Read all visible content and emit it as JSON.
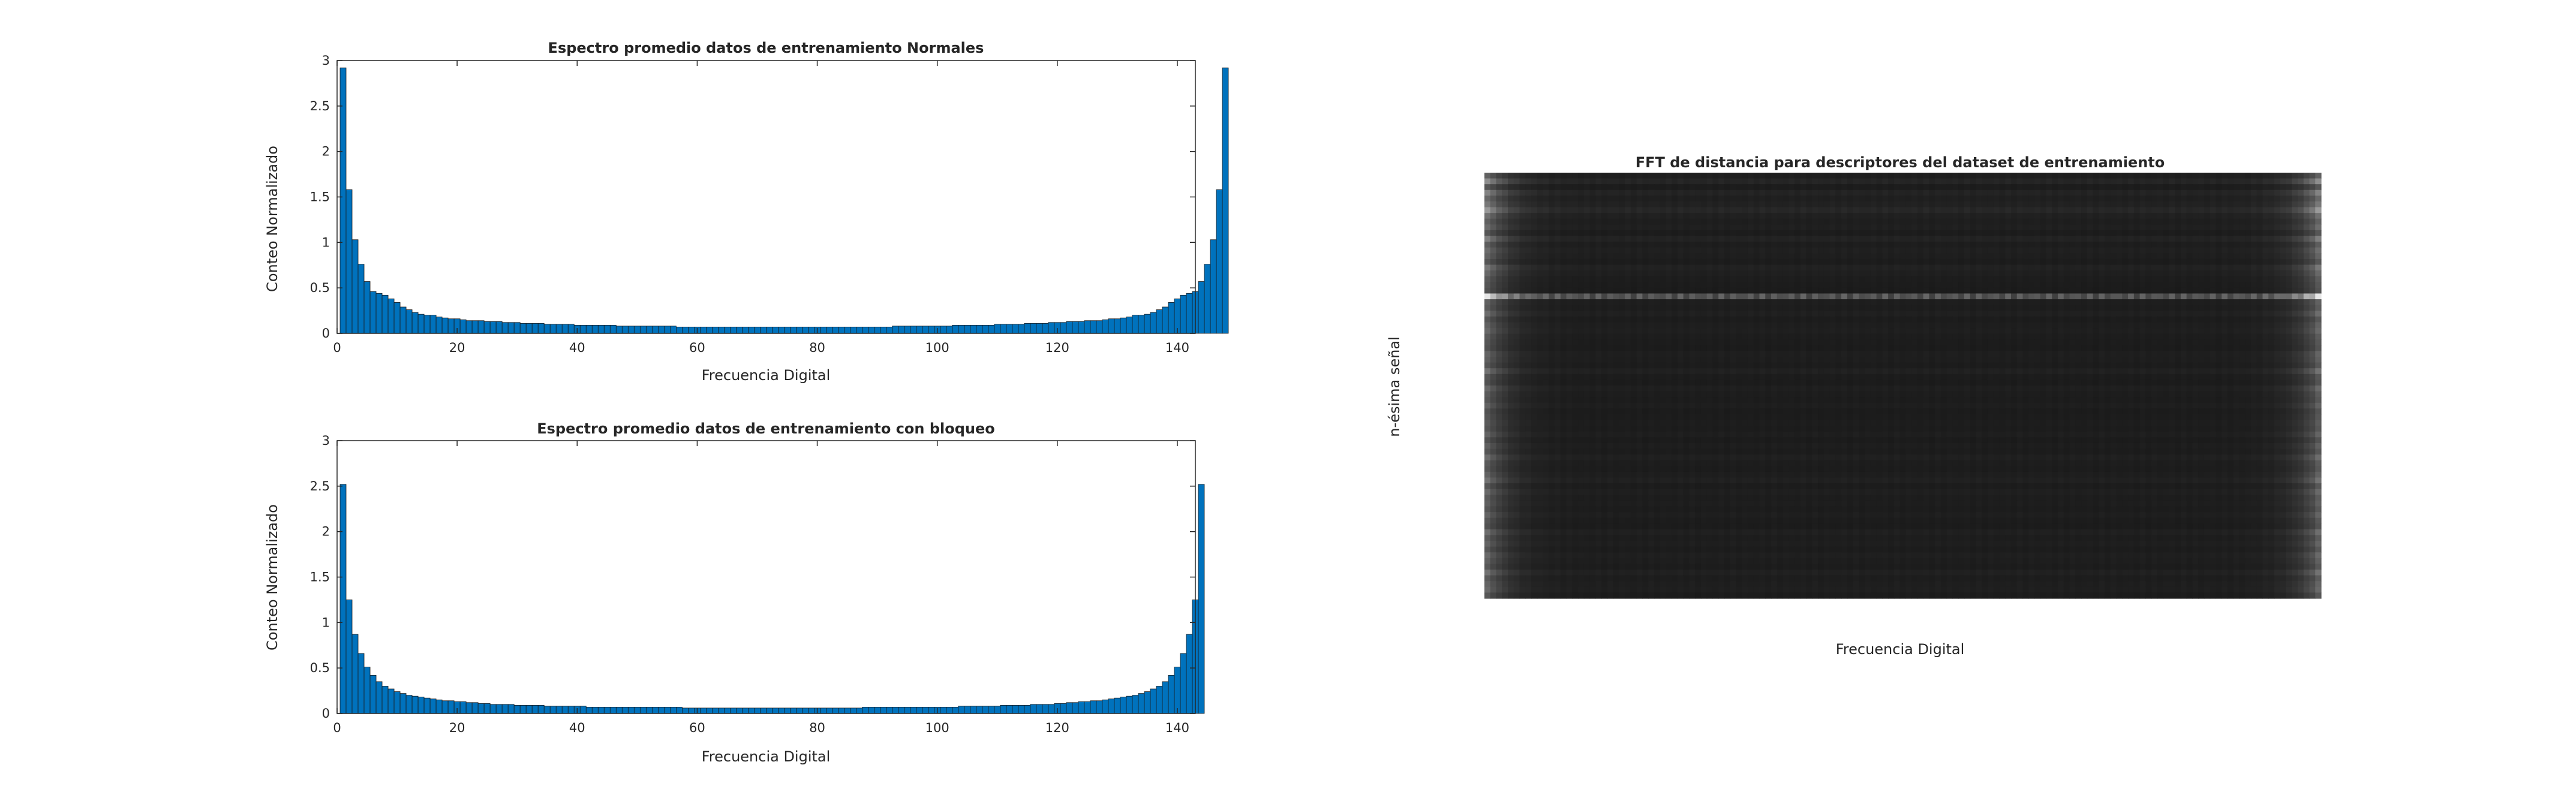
{
  "chart_data": [
    {
      "type": "bar",
      "title": "Espectro promedio datos de entrenamiento Normales",
      "xlabel": "Frecuencia Digital",
      "ylabel": "Conteo Normalizado",
      "xlim": [
        0,
        143
      ],
      "ylim": [
        0,
        3
      ],
      "xticks": [
        0,
        20,
        40,
        60,
        80,
        100,
        120,
        140
      ],
      "yticks": [
        0,
        0.5,
        1,
        1.5,
        2,
        2.5,
        3
      ],
      "bar_color": "#0072BD",
      "x_start": 1,
      "x_step": 1,
      "values": [
        2.92,
        1.58,
        1.03,
        0.76,
        0.57,
        0.46,
        0.44,
        0.42,
        0.38,
        0.34,
        0.29,
        0.26,
        0.23,
        0.21,
        0.2,
        0.2,
        0.18,
        0.17,
        0.16,
        0.16,
        0.15,
        0.14,
        0.14,
        0.14,
        0.13,
        0.13,
        0.13,
        0.12,
        0.12,
        0.12,
        0.11,
        0.11,
        0.11,
        0.11,
        0.1,
        0.1,
        0.1,
        0.1,
        0.1,
        0.09,
        0.09,
        0.09,
        0.09,
        0.09,
        0.09,
        0.09,
        0.08,
        0.08,
        0.08,
        0.08,
        0.08,
        0.08,
        0.08,
        0.08,
        0.08,
        0.08,
        0.07,
        0.07,
        0.07,
        0.07,
        0.07,
        0.07,
        0.07,
        0.07,
        0.07,
        0.07,
        0.07,
        0.07,
        0.07,
        0.07,
        0.07,
        0.07,
        0.07,
        0.07,
        0.07,
        0.07,
        0.07,
        0.07,
        0.07,
        0.07,
        0.07,
        0.07,
        0.07,
        0.07,
        0.07,
        0.07,
        0.07,
        0.07,
        0.07,
        0.07,
        0.07,
        0.07,
        0.08,
        0.08,
        0.08,
        0.08,
        0.08,
        0.08,
        0.08,
        0.08,
        0.08,
        0.08,
        0.09,
        0.09,
        0.09,
        0.09,
        0.09,
        0.09,
        0.09,
        0.1,
        0.1,
        0.1,
        0.1,
        0.1,
        0.11,
        0.11,
        0.11,
        0.11,
        0.12,
        0.12,
        0.12,
        0.13,
        0.13,
        0.13,
        0.14,
        0.14,
        0.14,
        0.15,
        0.16,
        0.16,
        0.17,
        0.18,
        0.2,
        0.2,
        0.21,
        0.23,
        0.26,
        0.29,
        0.34,
        0.38,
        0.42,
        0.44,
        0.46,
        0.57,
        0.76,
        1.03,
        1.58,
        2.92
      ]
    },
    {
      "type": "bar",
      "title": "Espectro promedio datos de entrenamiento con bloqueo",
      "xlabel": "Frecuencia Digital",
      "ylabel": "Conteo Normalizado",
      "xlim": [
        0,
        143
      ],
      "ylim": [
        0,
        3
      ],
      "xticks": [
        0,
        20,
        40,
        60,
        80,
        100,
        120,
        140
      ],
      "yticks": [
        0,
        0.5,
        1,
        1.5,
        2,
        2.5,
        3
      ],
      "bar_color": "#0072BD",
      "x_start": 1,
      "x_step": 1,
      "values": [
        2.52,
        1.25,
        0.87,
        0.66,
        0.51,
        0.42,
        0.35,
        0.3,
        0.27,
        0.24,
        0.22,
        0.2,
        0.19,
        0.18,
        0.17,
        0.16,
        0.15,
        0.14,
        0.14,
        0.13,
        0.13,
        0.12,
        0.12,
        0.11,
        0.11,
        0.1,
        0.1,
        0.1,
        0.1,
        0.09,
        0.09,
        0.09,
        0.09,
        0.09,
        0.08,
        0.08,
        0.08,
        0.08,
        0.08,
        0.08,
        0.08,
        0.07,
        0.07,
        0.07,
        0.07,
        0.07,
        0.07,
        0.07,
        0.07,
        0.07,
        0.07,
        0.07,
        0.07,
        0.07,
        0.07,
        0.07,
        0.07,
        0.06,
        0.06,
        0.06,
        0.06,
        0.06,
        0.06,
        0.06,
        0.06,
        0.06,
        0.06,
        0.06,
        0.06,
        0.06,
        0.06,
        0.06,
        0.06,
        0.06,
        0.06,
        0.06,
        0.06,
        0.06,
        0.06,
        0.06,
        0.06,
        0.06,
        0.06,
        0.06,
        0.06,
        0.06,
        0.06,
        0.07,
        0.07,
        0.07,
        0.07,
        0.07,
        0.07,
        0.07,
        0.07,
        0.07,
        0.07,
        0.07,
        0.07,
        0.07,
        0.07,
        0.07,
        0.07,
        0.08,
        0.08,
        0.08,
        0.08,
        0.08,
        0.08,
        0.08,
        0.09,
        0.09,
        0.09,
        0.09,
        0.09,
        0.1,
        0.1,
        0.1,
        0.1,
        0.11,
        0.11,
        0.12,
        0.12,
        0.13,
        0.13,
        0.14,
        0.14,
        0.15,
        0.16,
        0.17,
        0.18,
        0.19,
        0.2,
        0.22,
        0.24,
        0.27,
        0.3,
        0.35,
        0.42,
        0.51,
        0.66,
        0.87,
        1.25,
        2.52
      ]
    },
    {
      "type": "heatmap",
      "title": "FFT de distancia para descriptores del dataset de entrenamiento",
      "xlabel": "Frecuencia Digital",
      "ylabel": "n-ésima señal",
      "colormap": "gray",
      "n_rows": 74,
      "n_cols": 143,
      "row_intensity": [
        0.35,
        0.55,
        0.3,
        0.5,
        0.38,
        0.45,
        0.6,
        0.42,
        0.35,
        0.4,
        0.3,
        0.48,
        0.33,
        0.4,
        0.36,
        0.3,
        0.45,
        0.38,
        0.32,
        0.3,
        0.28,
        1.0,
        0.35,
        0.32,
        0.4,
        0.3,
        0.35,
        0.38,
        0.32,
        0.3,
        0.28,
        0.36,
        0.34,
        0.3,
        0.42,
        0.3,
        0.28,
        0.38,
        0.32,
        0.3,
        0.35,
        0.28,
        0.3,
        0.32,
        0.3,
        0.36,
        0.28,
        0.34,
        0.3,
        0.4,
        0.32,
        0.3,
        0.35,
        0.42,
        0.3,
        0.38,
        0.32,
        0.34,
        0.3,
        0.36,
        0.3,
        0.28,
        0.4,
        0.32,
        0.36,
        0.3,
        0.38,
        0.34,
        0.3,
        0.42,
        0.32,
        0.36,
        0.38,
        0.3
      ]
    }
  ]
}
